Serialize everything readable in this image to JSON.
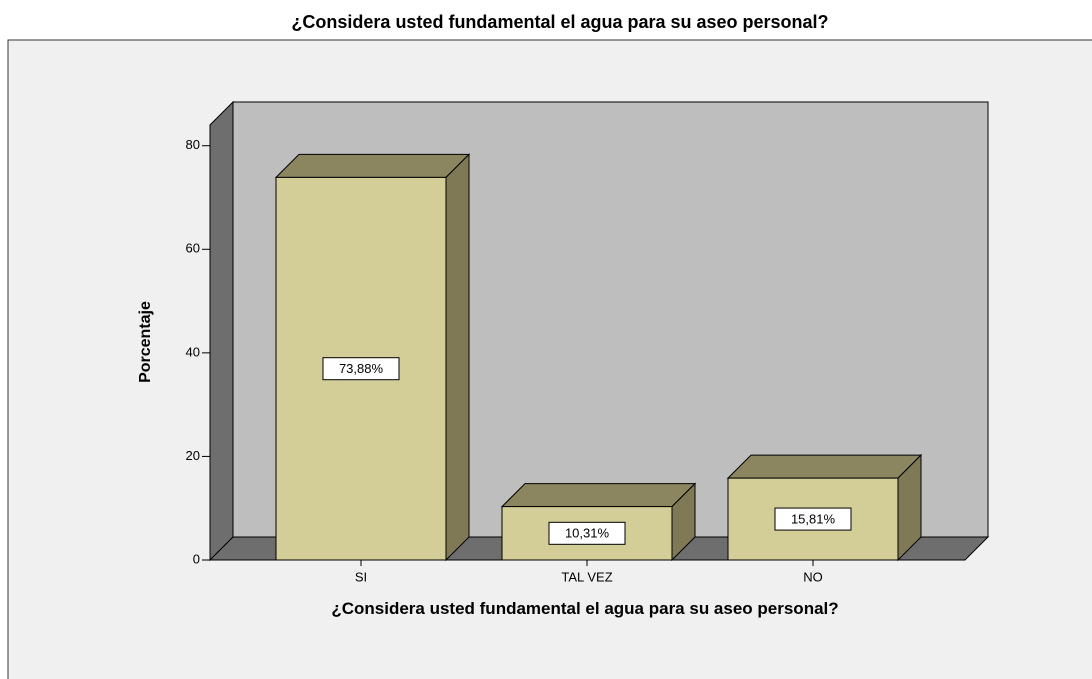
{
  "chart_data": {
    "type": "bar3d",
    "title": "¿Considera usted fundamental el agua para su aseo personal?",
    "x_label": "¿Considera usted fundamental el agua para su aseo personal?",
    "y_label": "Porcentaje",
    "categories": [
      "SI",
      "TAL VEZ",
      "NO"
    ],
    "values": [
      73.88,
      10.31,
      15.81
    ],
    "value_labels": [
      "73,88%",
      "10,31%",
      "15,81%"
    ],
    "color": "#d3ce97",
    "ylim": [
      0,
      84
    ],
    "yticks": [
      0,
      20,
      40,
      60,
      80
    ],
    "grid": false
  }
}
